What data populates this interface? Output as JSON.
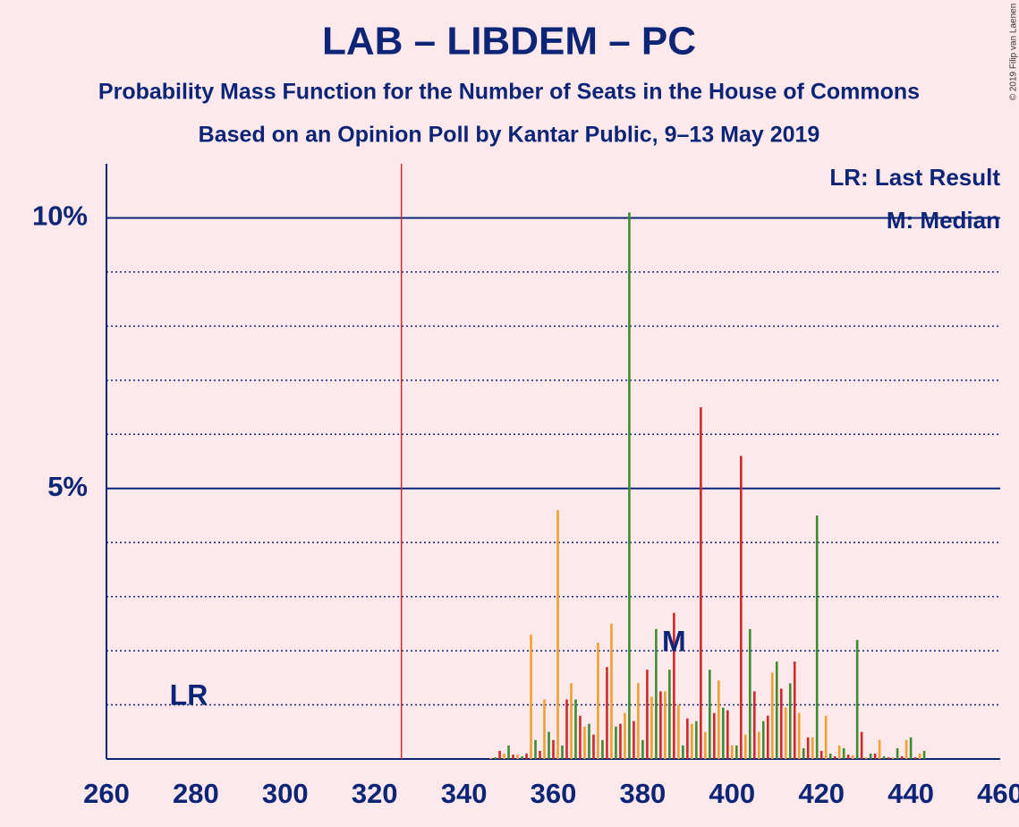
{
  "chart_data": {
    "type": "bar",
    "title": "LAB – LIBDEM – PC",
    "subtitle": [
      "Probability Mass Function for the Number of Seats in the House of Commons",
      "Based on an Opinion Poll by Kantar Public, 9–13 May 2019"
    ],
    "x": [
      346,
      347,
      348,
      349,
      350,
      351,
      352,
      353,
      354,
      355,
      356,
      357,
      358,
      359,
      360,
      361,
      362,
      363,
      364,
      365,
      366,
      367,
      368,
      369,
      370,
      371,
      372,
      373,
      374,
      375,
      376,
      377,
      378,
      379,
      380,
      381,
      382,
      383,
      384,
      385,
      386,
      387,
      388,
      389,
      390,
      391,
      392,
      393,
      394,
      395,
      396,
      397,
      398,
      399,
      400,
      401,
      402,
      403,
      404,
      405,
      406,
      407,
      408,
      409,
      410,
      411,
      412,
      413,
      414,
      415,
      416,
      417,
      418,
      419,
      420,
      421,
      422,
      423,
      424,
      425,
      426,
      427,
      428,
      429,
      430,
      431,
      432,
      433,
      434,
      435,
      436,
      437,
      438,
      439,
      440,
      441,
      442,
      443
    ],
    "values": [
      0.02,
      0.03,
      0.15,
      0.1,
      0.25,
      0.08,
      0.08,
      0.05,
      0.1,
      2.3,
      0.35,
      0.15,
      1.1,
      0.5,
      0.35,
      4.6,
      0.25,
      1.1,
      1.4,
      1.1,
      0.8,
      0.6,
      0.65,
      0.45,
      2.15,
      0.35,
      1.7,
      2.5,
      0.6,
      0.65,
      0.85,
      10.1,
      0.7,
      1.4,
      0.35,
      1.65,
      1.15,
      2.4,
      1.25,
      1.25,
      1.65,
      2.7,
      1.0,
      0.25,
      0.75,
      0.65,
      0.7,
      6.5,
      0.5,
      1.65,
      0.85,
      1.45,
      0.95,
      0.9,
      0.25,
      0.25,
      5.6,
      0.45,
      2.4,
      1.25,
      0.5,
      0.7,
      0.8,
      1.6,
      1.8,
      1.3,
      0.95,
      1.4,
      1.8,
      0.85,
      0.2,
      0.4,
      0.4,
      4.5,
      0.15,
      0.8,
      0.1,
      0.05,
      0.25,
      0.2,
      0.08,
      0.07,
      2.2,
      0.5,
      0.03,
      0.1,
      0.1,
      0.35,
      0.05,
      0.03,
      0.03,
      0.2,
      0.05,
      0.35,
      0.4,
      0.03,
      0.1,
      0.15
    ],
    "colors": [
      "#f0a030",
      "#3c8c30",
      "#d02828"
    ],
    "xlim": [
      260,
      460
    ],
    "xticks": [
      260,
      280,
      300,
      320,
      340,
      360,
      380,
      400,
      420,
      440,
      460
    ],
    "ylim": [
      0,
      11
    ],
    "yticks": [
      {
        "value": 5,
        "label": "5%"
      },
      {
        "value": 10,
        "label": "10%"
      }
    ],
    "minor_yticks": [
      1,
      2,
      3,
      4,
      6,
      7,
      8,
      9
    ],
    "last_result": {
      "x": 326,
      "label": "LR"
    },
    "median": {
      "x": 387,
      "label": "M"
    },
    "legend": [
      "LR: Last Result",
      "M: Median"
    ],
    "credit": "© 2019 Filip van Laenen"
  }
}
